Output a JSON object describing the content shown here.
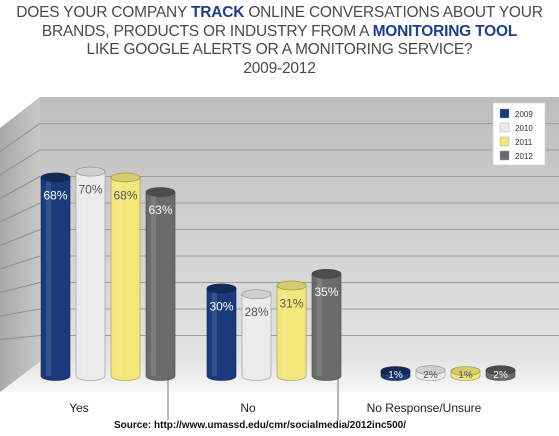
{
  "title": {
    "line1_a": "DOES YOUR COMPANY ",
    "line1_b": "TRACK",
    "line1_c": " ONLINE CONVERSATIONS ABOUT YOUR",
    "line2_a": "BRANDS, PRODUCTS OR INDUSTRY FROM A ",
    "line2_b": "MONITORING TOOL",
    "line3": "LIKE GOOGLE ALERTS OR A MONITORING SERVICE?",
    "line4": "2009-2012"
  },
  "source": "Source: http://www.umassd.edu/cmr/socialmedia/2012inc500/",
  "colors": {
    "2009": "#1a3a7c",
    "2010": "#ebebeb",
    "2011": "#f4e77a",
    "2012": "#6b6b6b"
  },
  "chart_data": {
    "type": "bar",
    "categories": [
      "Yes",
      "No",
      "No Response/Unsure"
    ],
    "series": [
      {
        "name": "2009",
        "values": [
          68,
          30,
          1
        ],
        "labels": [
          "68%",
          "30%",
          "1%"
        ]
      },
      {
        "name": "2010",
        "values": [
          70,
          28,
          2
        ],
        "labels": [
          "70%",
          "28%",
          "2%"
        ]
      },
      {
        "name": "2011",
        "values": [
          68,
          31,
          1
        ],
        "labels": [
          "68%",
          "31%",
          "1%"
        ]
      },
      {
        "name": "2012",
        "values": [
          63,
          35,
          2
        ],
        "labels": [
          "63%",
          "35%",
          "2%"
        ]
      }
    ],
    "ylim": [
      0,
      100
    ],
    "grid": true,
    "legend_position": "top-right"
  }
}
